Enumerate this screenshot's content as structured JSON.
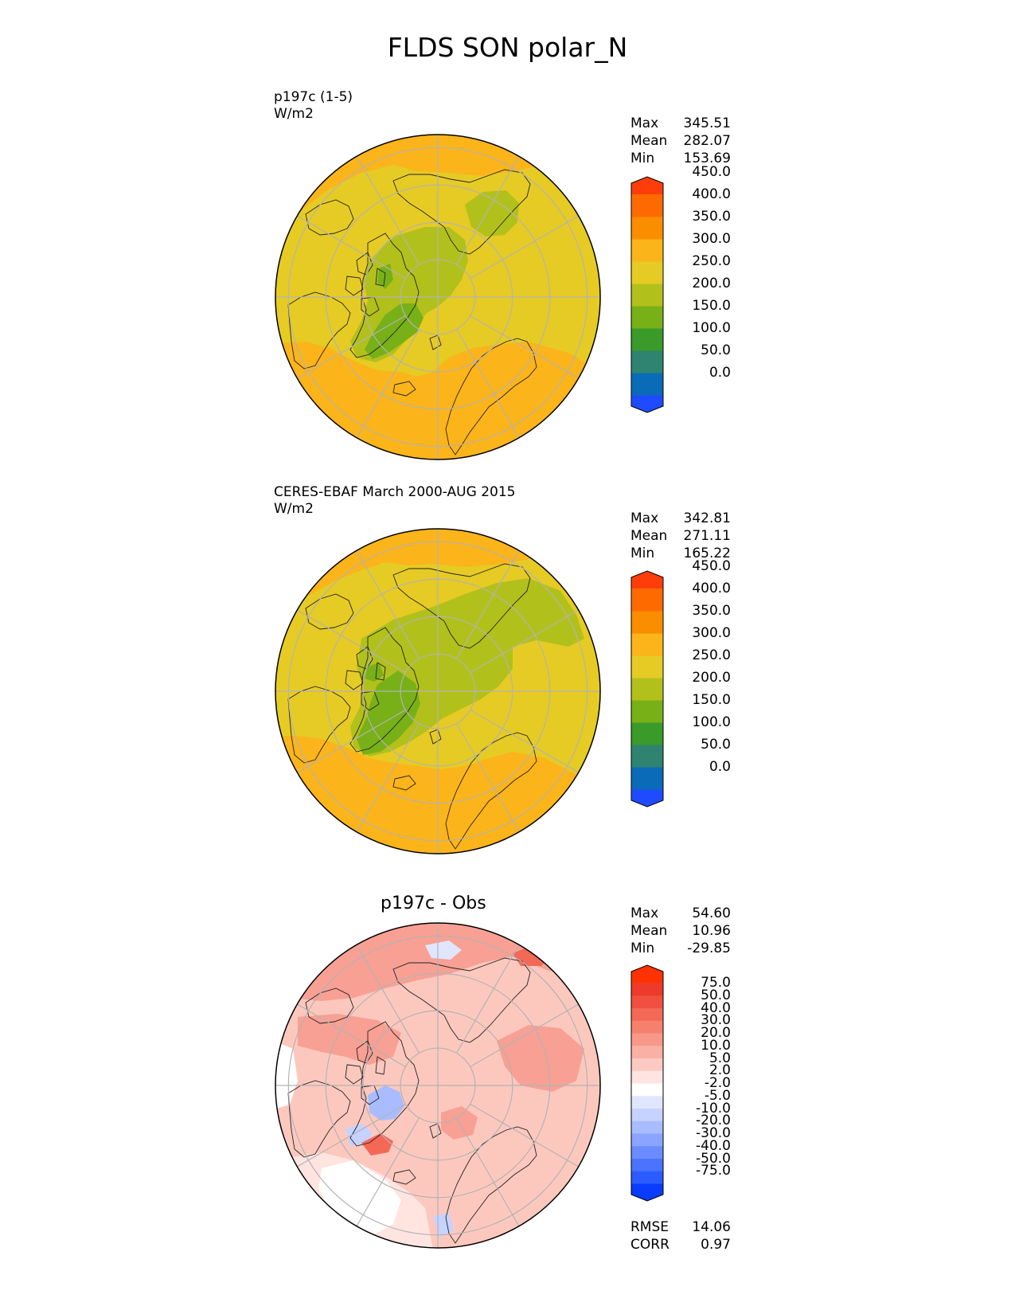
{
  "title": "FLDS SON polar_N",
  "panels": [
    {
      "id": "model",
      "label_lines": [
        "p197c (1-5)",
        "W/m2"
      ],
      "subtitle": "",
      "stats": [
        {
          "label": "Max",
          "value": "345.51"
        },
        {
          "label": "Mean",
          "value": "282.07"
        },
        {
          "label": "Min",
          "value": "153.69"
        }
      ],
      "colorbar": {
        "colors": [
          "#1f4bff",
          "#0a6bb8",
          "#2e8470",
          "#3a9a2a",
          "#78b018",
          "#b2c01c",
          "#e6cb24",
          "#fbb41a",
          "#fb8d00",
          "#ff6a00",
          "#ff3d0a"
        ],
        "ticks": [
          "0.0",
          "50.0",
          "100.0",
          "150.0",
          "200.0",
          "250.0",
          "300.0",
          "350.0",
          "400.0",
          "450.0"
        ]
      },
      "extra_stats": []
    },
    {
      "id": "obs",
      "label_lines": [
        "CERES-EBAF March 2000-AUG 2015",
        "W/m2"
      ],
      "subtitle": "",
      "stats": [
        {
          "label": "Max",
          "value": "342.81"
        },
        {
          "label": "Mean",
          "value": "271.11"
        },
        {
          "label": "Min",
          "value": "165.22"
        }
      ],
      "colorbar": {
        "colors": [
          "#1f4bff",
          "#0a6bb8",
          "#2e8470",
          "#3a9a2a",
          "#78b018",
          "#b2c01c",
          "#e6cb24",
          "#fbb41a",
          "#fb8d00",
          "#ff6a00",
          "#ff3d0a"
        ],
        "ticks": [
          "0.0",
          "50.0",
          "100.0",
          "150.0",
          "200.0",
          "250.0",
          "300.0",
          "350.0",
          "400.0",
          "450.0"
        ]
      },
      "extra_stats": []
    },
    {
      "id": "diff",
      "label_lines": [],
      "subtitle": "p197c - Obs",
      "stats": [
        {
          "label": "Max",
          "value": "54.60"
        },
        {
          "label": "Mean",
          "value": "10.96"
        },
        {
          "label": "Min",
          "value": "-29.85"
        }
      ],
      "colorbar": {
        "colors": [
          "#0a3cff",
          "#2a5cff",
          "#4a74ff",
          "#6a8cff",
          "#8aa4ff",
          "#a8bcff",
          "#c6d2ff",
          "#e0e6ff",
          "#ffffff",
          "#ffe4e0",
          "#fccac2",
          "#fab0a4",
          "#f89888",
          "#f6806e",
          "#f46856",
          "#f14f40",
          "#ee3a2a",
          "#ff3200"
        ],
        "ticks": [
          "-75.0",
          "-50.0",
          "-40.0",
          "-30.0",
          "-20.0",
          "-10.0",
          "-5.0",
          "-2.0",
          "2.0",
          "5.0",
          "10.0",
          "20.0",
          "30.0",
          "40.0",
          "50.0",
          "75.0"
        ]
      },
      "extra_stats": [
        {
          "label": "RMSE",
          "value": "14.06"
        },
        {
          "label": "CORR",
          "value": "0.97"
        }
      ]
    }
  ],
  "chart_data": [
    {
      "type": "heatmap",
      "title": "FLDS SON polar_N",
      "projection": "north polar stereographic",
      "label": "p197c (1-5)",
      "units": "W/m2",
      "max": 345.51,
      "mean": 282.07,
      "min": 153.69,
      "levels": [
        0,
        50,
        100,
        150,
        200,
        250,
        300,
        350,
        400,
        450
      ],
      "extend": "both"
    },
    {
      "type": "heatmap",
      "projection": "north polar stereographic",
      "label": "CERES-EBAF March 2000-AUG 2015",
      "units": "W/m2",
      "max": 342.81,
      "mean": 271.11,
      "min": 165.22,
      "levels": [
        0,
        50,
        100,
        150,
        200,
        250,
        300,
        350,
        400,
        450
      ],
      "extend": "both"
    },
    {
      "type": "heatmap",
      "projection": "north polar stereographic",
      "title": "p197c - Obs",
      "max": 54.6,
      "mean": 10.96,
      "min": -29.85,
      "rmse": 14.06,
      "corr": 0.97,
      "levels": [
        -75,
        -50,
        -40,
        -30,
        -20,
        -10,
        -5,
        -2,
        2,
        5,
        10,
        20,
        30,
        40,
        50,
        75
      ],
      "extend": "both"
    }
  ]
}
